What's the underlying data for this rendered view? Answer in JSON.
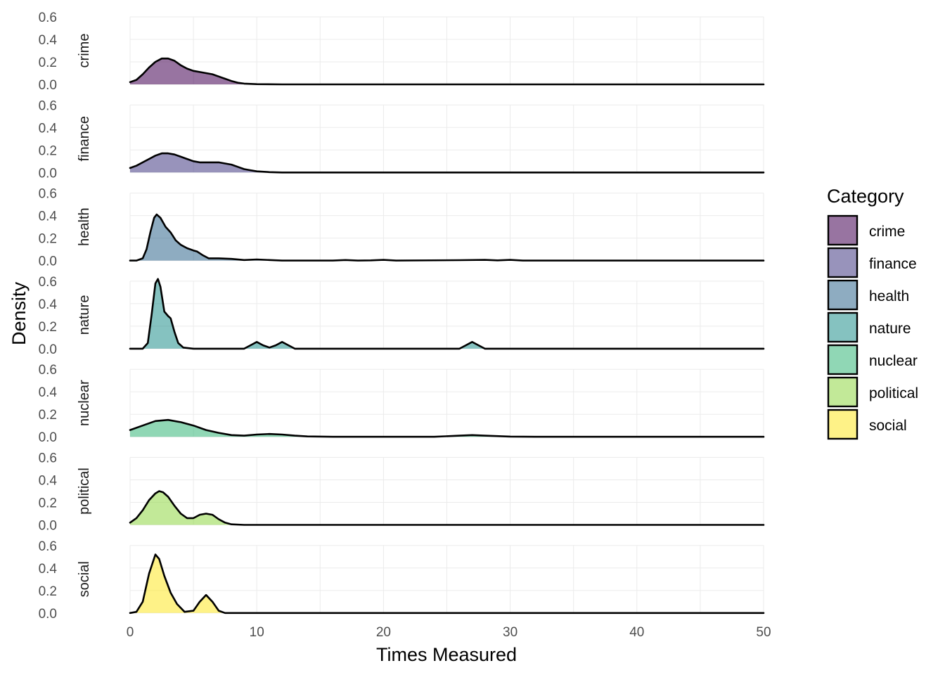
{
  "chart_data": {
    "type": "area",
    "subtype": "faceted density (ridgeline)",
    "xlabel": "Times Measured",
    "ylabel": "Density",
    "xlim": [
      0,
      50
    ],
    "ylim": [
      0,
      0.6
    ],
    "x_ticks": [
      "0",
      "10",
      "20",
      "30",
      "40",
      "50"
    ],
    "y_ticks": [
      "0.0",
      "0.2",
      "0.4",
      "0.6"
    ],
    "grid": true,
    "fill_opacity": 0.55,
    "legend": {
      "title": "Category",
      "position": "right"
    },
    "series": [
      {
        "name": "crime",
        "color": "#440154",
        "points": [
          [
            0,
            0.02
          ],
          [
            0.5,
            0.04
          ],
          [
            1,
            0.09
          ],
          [
            1.5,
            0.15
          ],
          [
            2,
            0.2
          ],
          [
            2.5,
            0.23
          ],
          [
            3,
            0.23
          ],
          [
            3.5,
            0.21
          ],
          [
            4,
            0.17
          ],
          [
            4.5,
            0.14
          ],
          [
            5,
            0.12
          ],
          [
            5.5,
            0.11
          ],
          [
            6,
            0.1
          ],
          [
            6.5,
            0.09
          ],
          [
            7,
            0.07
          ],
          [
            7.5,
            0.05
          ],
          [
            8,
            0.03
          ],
          [
            8.5,
            0.015
          ],
          [
            9,
            0.007
          ],
          [
            10,
            0.002
          ],
          [
            12,
            0
          ],
          [
            50,
            0
          ]
        ]
      },
      {
        "name": "finance",
        "color": "#443A83",
        "points": [
          [
            0,
            0.04
          ],
          [
            0.5,
            0.06
          ],
          [
            1,
            0.09
          ],
          [
            1.5,
            0.12
          ],
          [
            2,
            0.15
          ],
          [
            2.5,
            0.17
          ],
          [
            3,
            0.17
          ],
          [
            3.5,
            0.16
          ],
          [
            4,
            0.14
          ],
          [
            4.5,
            0.12
          ],
          [
            5,
            0.1
          ],
          [
            5.5,
            0.09
          ],
          [
            6,
            0.09
          ],
          [
            6.5,
            0.09
          ],
          [
            7,
            0.09
          ],
          [
            7.5,
            0.08
          ],
          [
            8,
            0.07
          ],
          [
            8.5,
            0.05
          ],
          [
            9,
            0.03
          ],
          [
            9.5,
            0.02
          ],
          [
            10,
            0.01
          ],
          [
            11,
            0.003
          ],
          [
            12,
            0
          ],
          [
            50,
            0
          ]
        ]
      },
      {
        "name": "health",
        "color": "#31688E",
        "points": [
          [
            0,
            0
          ],
          [
            0.5,
            0
          ],
          [
            1,
            0.02
          ],
          [
            1.3,
            0.1
          ],
          [
            1.6,
            0.25
          ],
          [
            1.9,
            0.38
          ],
          [
            2.1,
            0.41
          ],
          [
            2.4,
            0.38
          ],
          [
            2.8,
            0.3
          ],
          [
            3.2,
            0.25
          ],
          [
            3.6,
            0.18
          ],
          [
            4,
            0.14
          ],
          [
            4.5,
            0.11
          ],
          [
            5,
            0.09
          ],
          [
            5.3,
            0.08
          ],
          [
            5.7,
            0.05
          ],
          [
            6.2,
            0.02
          ],
          [
            7,
            0.02
          ],
          [
            8,
            0.015
          ],
          [
            9,
            0.005
          ],
          [
            10,
            0.01
          ],
          [
            11,
            0.005
          ],
          [
            12,
            0
          ],
          [
            16,
            0
          ],
          [
            17,
            0.005
          ],
          [
            18,
            0
          ],
          [
            19,
            0.002
          ],
          [
            20,
            0.006
          ],
          [
            21,
            0
          ],
          [
            26,
            0.004
          ],
          [
            28,
            0.006
          ],
          [
            29,
            0.002
          ],
          [
            30,
            0.006
          ],
          [
            31,
            0
          ],
          [
            50,
            0
          ]
        ]
      },
      {
        "name": "nature",
        "color": "#21908C",
        "points": [
          [
            0,
            0
          ],
          [
            1,
            0
          ],
          [
            1.4,
            0.05
          ],
          [
            1.7,
            0.3
          ],
          [
            2,
            0.58
          ],
          [
            2.2,
            0.62
          ],
          [
            2.4,
            0.55
          ],
          [
            2.7,
            0.33
          ],
          [
            3,
            0.29
          ],
          [
            3.2,
            0.27
          ],
          [
            3.5,
            0.15
          ],
          [
            3.8,
            0.05
          ],
          [
            4.2,
            0.01
          ],
          [
            5,
            0
          ],
          [
            9,
            0
          ],
          [
            9.5,
            0.03
          ],
          [
            10,
            0.06
          ],
          [
            10.5,
            0.03
          ],
          [
            11,
            0.01
          ],
          [
            11.5,
            0.03
          ],
          [
            12,
            0.06
          ],
          [
            12.5,
            0.03
          ],
          [
            13,
            0
          ],
          [
            26,
            0
          ],
          [
            26.5,
            0.03
          ],
          [
            27,
            0.06
          ],
          [
            27.5,
            0.03
          ],
          [
            28,
            0
          ],
          [
            50,
            0
          ]
        ]
      },
      {
        "name": "nuclear",
        "color": "#35B779",
        "points": [
          [
            0,
            0.06
          ],
          [
            1,
            0.1
          ],
          [
            2,
            0.14
          ],
          [
            3,
            0.15
          ],
          [
            4,
            0.13
          ],
          [
            5,
            0.1
          ],
          [
            6,
            0.06
          ],
          [
            7,
            0.035
          ],
          [
            8,
            0.015
          ],
          [
            9,
            0.01
          ],
          [
            10,
            0.02
          ],
          [
            11,
            0.025
          ],
          [
            12,
            0.02
          ],
          [
            13,
            0.01
          ],
          [
            14,
            0.003
          ],
          [
            16,
            0
          ],
          [
            24,
            0
          ],
          [
            26,
            0.01
          ],
          [
            27,
            0.015
          ],
          [
            28,
            0.01
          ],
          [
            30,
            0.002
          ],
          [
            32,
            0
          ],
          [
            50,
            0
          ]
        ]
      },
      {
        "name": "political",
        "color": "#8FD744",
        "points": [
          [
            0,
            0.02
          ],
          [
            0.5,
            0.06
          ],
          [
            1,
            0.13
          ],
          [
            1.5,
            0.22
          ],
          [
            2,
            0.28
          ],
          [
            2.3,
            0.3
          ],
          [
            2.6,
            0.29
          ],
          [
            3,
            0.25
          ],
          [
            3.5,
            0.17
          ],
          [
            4,
            0.1
          ],
          [
            4.5,
            0.06
          ],
          [
            5,
            0.06
          ],
          [
            5.5,
            0.09
          ],
          [
            6,
            0.1
          ],
          [
            6.5,
            0.09
          ],
          [
            7,
            0.05
          ],
          [
            7.5,
            0.02
          ],
          [
            8,
            0.005
          ],
          [
            9,
            0
          ],
          [
            50,
            0
          ]
        ]
      },
      {
        "name": "social",
        "color": "#FDE725",
        "points": [
          [
            0,
            0
          ],
          [
            0.5,
            0.01
          ],
          [
            1,
            0.1
          ],
          [
            1.5,
            0.35
          ],
          [
            2,
            0.52
          ],
          [
            2.3,
            0.48
          ],
          [
            2.7,
            0.33
          ],
          [
            3.2,
            0.18
          ],
          [
            3.7,
            0.08
          ],
          [
            4.3,
            0.01
          ],
          [
            5,
            0.02
          ],
          [
            5.5,
            0.1
          ],
          [
            6,
            0.16
          ],
          [
            6.5,
            0.1
          ],
          [
            7,
            0.02
          ],
          [
            7.5,
            0
          ],
          [
            50,
            0
          ]
        ]
      }
    ]
  }
}
